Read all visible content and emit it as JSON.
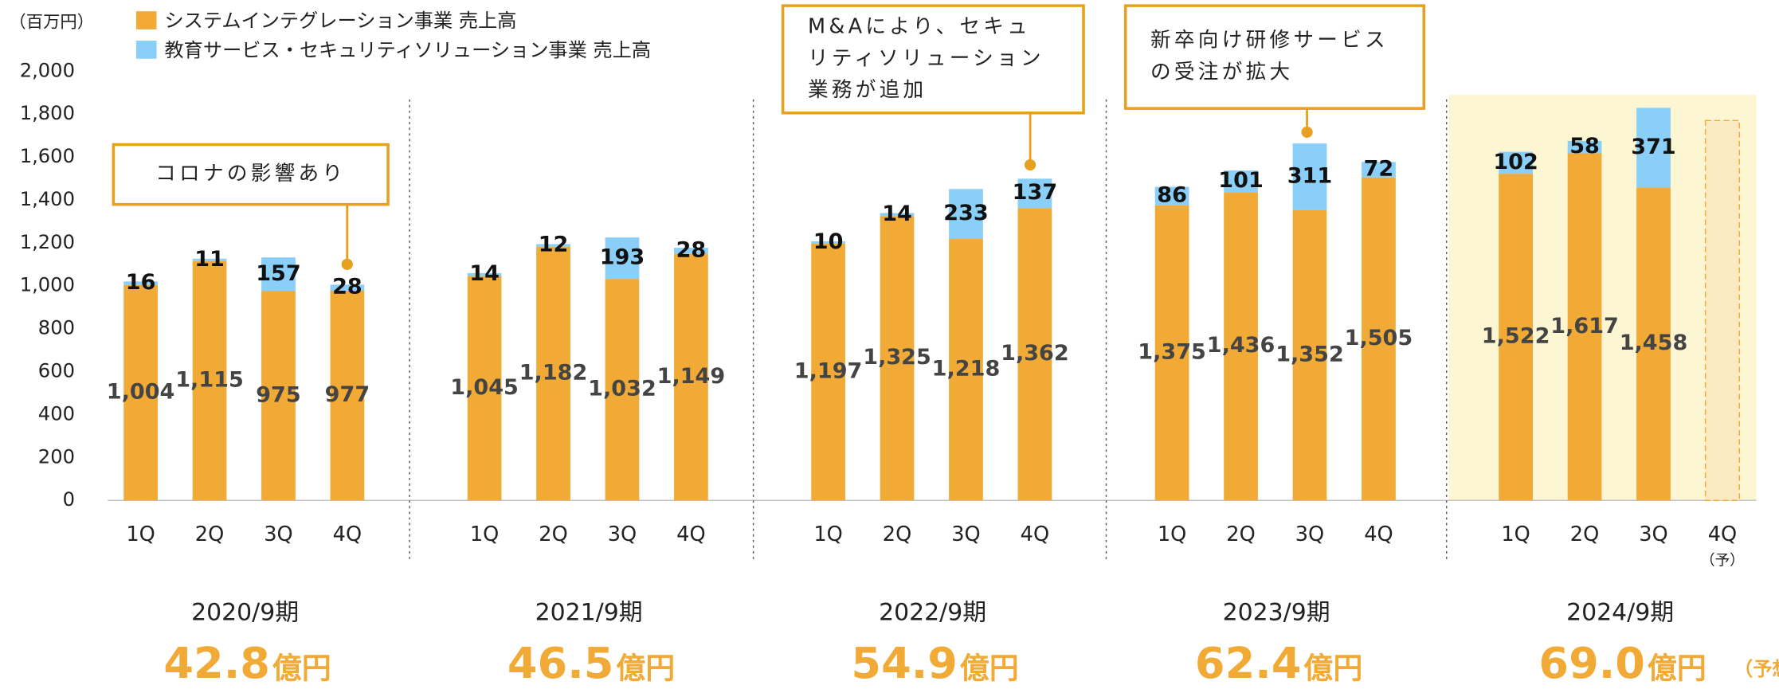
{
  "chart_data": {
    "type": "stacked_bar",
    "unit_label": "（百万円）",
    "categories": [
      "1Q",
      "2Q",
      "3Q",
      "4Q",
      "1Q",
      "2Q",
      "3Q",
      "4Q",
      "1Q",
      "2Q",
      "3Q",
      "4Q",
      "1Q",
      "2Q",
      "3Q",
      "4Q",
      "1Q",
      "2Q",
      "3Q",
      "4Q"
    ],
    "series": [
      {
        "name": "システムインテグレーション事業 売上高",
        "color": "#f0aa35",
        "values": [
          1004,
          1115,
          975,
          977,
          1045,
          1182,
          1032,
          1149,
          1197,
          1325,
          1218,
          1362,
          1375,
          1436,
          1352,
          1505,
          1522,
          1617,
          1458,
          null
        ],
        "value_labels": [
          "1,004",
          "1,115",
          "975",
          "977",
          "1,045",
          "1,182",
          "1,032",
          "1,149",
          "1,197",
          "1,325",
          "1,218",
          "1,362",
          "1,375",
          "1,436",
          "1,352",
          "1,505",
          "1,522",
          "1,617",
          "1,458",
          null
        ]
      },
      {
        "name": "教育サービス・セキュリティソリューション事業 売上高",
        "color": "#89cff8",
        "values": [
          16,
          11,
          157,
          28,
          14,
          12,
          193,
          28,
          10,
          14,
          233,
          137,
          86,
          101,
          311,
          72,
          102,
          58,
          371,
          null
        ]
      }
    ],
    "forecast": {
      "value": 1770,
      "note": "（予）",
      "color": "#fbe9c2"
    },
    "ylim": [
      0,
      2000
    ],
    "yticks": [
      0,
      {
        "value": 200,
        "label": "200"
      },
      {
        "value": 400,
        "label": "400"
      },
      {
        "value": 600,
        "label": "600"
      },
      {
        "value": 800,
        "label": "800"
      },
      {
        "value": 1000,
        "label": "1,000"
      },
      {
        "value": 1200,
        "label": "1,200"
      },
      {
        "value": 1400,
        "label": "1,400"
      },
      {
        "value": 1600,
        "label": "1,600"
      },
      {
        "value": 1800,
        "label": "1,800"
      },
      {
        "value": 2000,
        "label": "2,000"
      }
    ],
    "periods": [
      {
        "label": "2020/9期",
        "total": 42.8,
        "total_label": "42.8",
        "unit": "億円"
      },
      {
        "label": "2021/9期",
        "total": 46.5,
        "total_label": "46.5",
        "unit": "億円"
      },
      {
        "label": "2022/9期",
        "total": 54.9,
        "total_label": "54.9",
        "unit": "億円"
      },
      {
        "label": "2023/9期",
        "total": 62.4,
        "total_label": "62.4",
        "unit": "億円"
      },
      {
        "label": "2024/9期",
        "total": 69.0,
        "total_label": "69.0",
        "unit": "億円",
        "note": "（予想）"
      }
    ],
    "annotations": [
      {
        "lines": [
          "コロナの影響あり"
        ]
      },
      {
        "lines": [
          "M&Aにより、セキュ",
          "リティソリューション",
          "業務が追加"
        ]
      },
      {
        "lines": [
          "新卒向け研修サービス",
          "の受注が拡大"
        ]
      }
    ]
  }
}
